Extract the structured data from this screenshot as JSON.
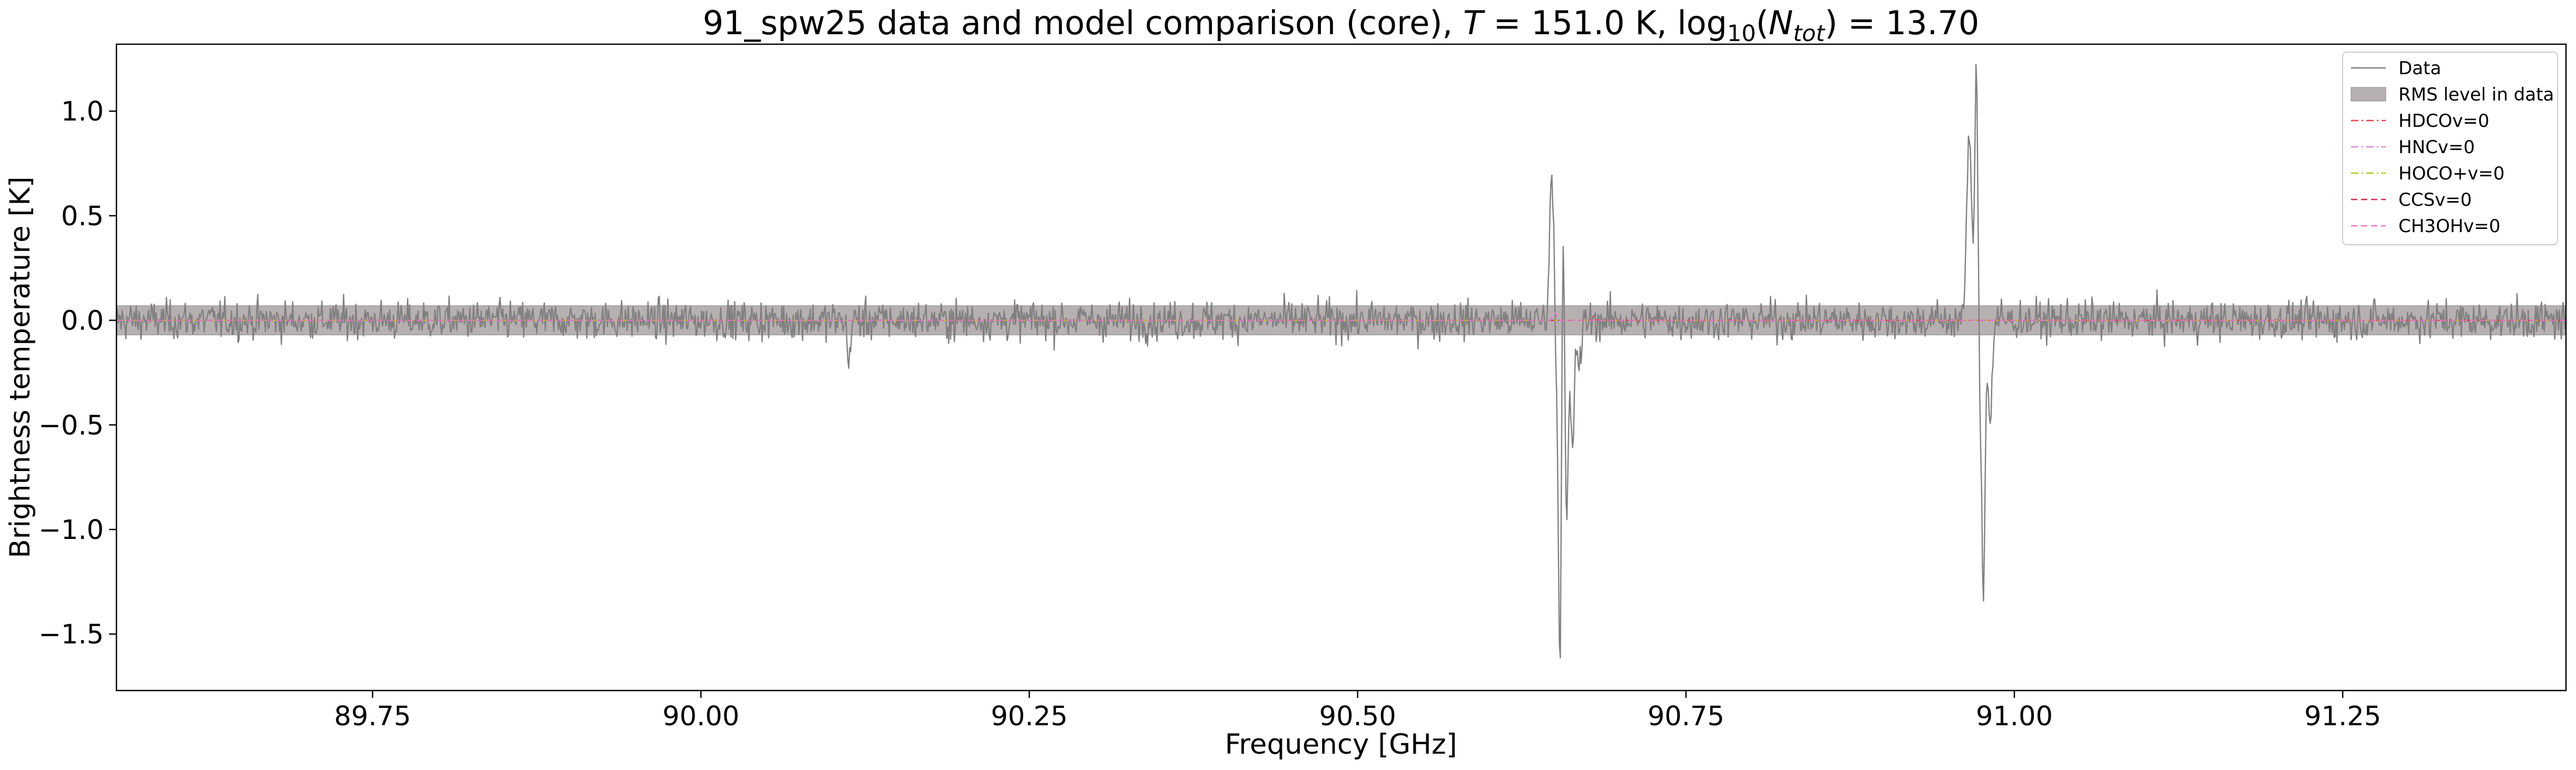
{
  "chart_data": {
    "type": "line",
    "title": "91_spw25 data and model comparison (core), T = 151.0 K, log10(Ntot) = 13.70",
    "title_parts": {
      "prefix": "91_spw25 data and model comparison (core), ",
      "t_symbol": "T",
      "t_value": " = 151.0 K, log",
      "log_base": "10",
      "n_symbol": "N",
      "n_sub": "tot",
      "n_value": " = 13.70"
    },
    "xlabel": "Frequency [GHz]",
    "ylabel": "Brightness temperature [K]",
    "xlim": [
      89.555,
      91.42
    ],
    "ylim": [
      -1.77,
      1.32
    ],
    "xticks": [
      89.75,
      90.0,
      90.25,
      90.5,
      90.75,
      91.0,
      91.25
    ],
    "xtick_labels": [
      "89.75",
      "90.00",
      "90.25",
      "90.50",
      "90.75",
      "91.00",
      "91.25"
    ],
    "yticks": [
      1.0,
      0.5,
      0.0,
      -0.5,
      -1.0,
      -1.5
    ],
    "ytick_labels": [
      "1.0",
      "0.5",
      "0.0",
      "−0.5",
      "−1.0",
      "−1.5"
    ],
    "grid": false,
    "legend_position": "top-right",
    "rms_level": 0.07,
    "data_noise_rms": 0.045,
    "data_features": [
      {
        "x": 90.648,
        "y": 0.72,
        "width": 0.0035
      },
      {
        "x": 90.6505,
        "y": -0.28,
        "width": 0.002
      },
      {
        "x": 90.654,
        "y": -1.65,
        "width": 0.0025
      },
      {
        "x": 90.6565,
        "y": 0.8,
        "width": 0.002
      },
      {
        "x": 90.659,
        "y": -1.02,
        "width": 0.0025
      },
      {
        "x": 90.6635,
        "y": -0.62,
        "width": 0.003
      },
      {
        "x": 90.669,
        "y": -0.22,
        "width": 0.003
      },
      {
        "x": 90.9655,
        "y": 0.9,
        "width": 0.0035
      },
      {
        "x": 90.971,
        "y": 1.17,
        "width": 0.0025
      },
      {
        "x": 90.974,
        "y": -0.35,
        "width": 0.002
      },
      {
        "x": 90.9765,
        "y": -1.26,
        "width": 0.0025
      },
      {
        "x": 90.9815,
        "y": -0.5,
        "width": 0.003
      },
      {
        "x": 90.1125,
        "y": -0.24,
        "width": 0.002
      }
    ],
    "series": [
      {
        "name": "Data",
        "color": "#808080",
        "style": "solid",
        "kind": "line"
      },
      {
        "name": "RMS level in data",
        "color": "#b7b0b1",
        "style": "fill",
        "kind": "band"
      },
      {
        "name": "HDCOv=0",
        "color": "#e8404a",
        "style": "dashdot",
        "kind": "line"
      },
      {
        "name": "HNCv=0",
        "color": "#d98ad9",
        "style": "dashdot",
        "kind": "line"
      },
      {
        "name": "HOCO+v=0",
        "color": "#a8cc1a",
        "style": "dashdot",
        "kind": "line"
      },
      {
        "name": "CCSv=0",
        "color": "#d6284a",
        "style": "dashed",
        "kind": "line"
      },
      {
        "name": "CH3OHv=0",
        "color": "#ea6fd0",
        "style": "dashed",
        "kind": "line"
      }
    ],
    "model_features": [
      {
        "series": "CH3OHv=0",
        "x": 90.6495,
        "y": 0.07,
        "width": 0.0015
      },
      {
        "series": "HDCOv=0",
        "x": 90.6795,
        "y": 0.02,
        "width": 0.002
      }
    ]
  }
}
